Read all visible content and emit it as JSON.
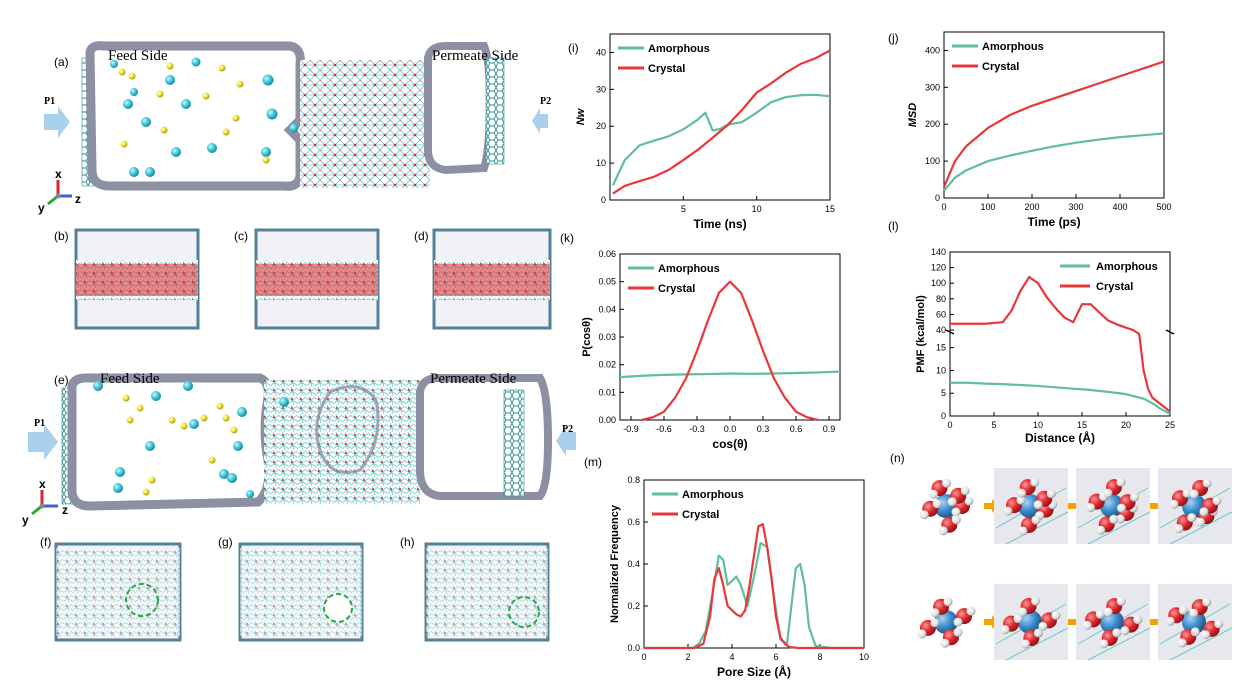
{
  "colors": {
    "amorphous": "#5fbe9c",
    "crystal": "#e8363b",
    "molecule_red": "#d8262c",
    "molecule_cyan": "#3fc9dd",
    "molecule_yellow": "#f2e531",
    "ion_blue": "#3d8fd0",
    "membrane_gray": "#8d8fa2",
    "arrow_blue": "#a9d1ee",
    "arrow_orange": "#f5a300",
    "circle_green": "#2aa640"
  },
  "panels": {
    "a": "(a)",
    "b": "(b)",
    "c": "(c)",
    "d": "(d)",
    "e": "(e)",
    "f": "(f)",
    "g": "(g)",
    "h": "(h)",
    "i": "(i)",
    "j": "(j)",
    "k": "(k)",
    "l": "(l)",
    "m": "(m)",
    "n": "(n)"
  },
  "sim": {
    "feed_side": "Feed Side",
    "permeate_side": "Permeate Side",
    "p1": "P1",
    "p2": "P2",
    "axis_x": "x",
    "axis_y": "y",
    "axis_z": "z"
  },
  "chart_data": [
    {
      "id": "i",
      "type": "line",
      "xlabel": "Time (ns)",
      "ylabel": "Nw",
      "xlim": [
        0,
        15
      ],
      "ylim": [
        0,
        45
      ],
      "xticks": [
        5,
        10,
        15
      ],
      "yticks": [
        0,
        10,
        20,
        30,
        40
      ],
      "legend": "top-left",
      "series": [
        {
          "name": "Amorphous",
          "color": "#5fbe9c",
          "x": [
            0.2,
            1,
            2,
            3,
            4,
            5,
            6,
            6.5,
            7,
            7.5,
            8,
            9,
            10,
            11,
            12,
            13,
            14,
            15
          ],
          "y": [
            4,
            10,
            14,
            16,
            18,
            20,
            22,
            23,
            18,
            19,
            21,
            22,
            24,
            26,
            27,
            28,
            29,
            29
          ]
        },
        {
          "name": "Crystal",
          "color": "#e8363b",
          "x": [
            0.2,
            1,
            2,
            3,
            4,
            5,
            6,
            7,
            8,
            9,
            10,
            11,
            12,
            13,
            14,
            15
          ],
          "y": [
            1,
            3,
            5,
            7,
            9,
            11,
            13,
            16,
            20,
            25,
            30,
            32,
            34,
            36,
            38,
            41
          ]
        }
      ]
    },
    {
      "id": "j",
      "type": "line",
      "xlabel": "Time (ps)",
      "ylabel": "MSD",
      "xlim": [
        0,
        500
      ],
      "ylim": [
        0,
        450
      ],
      "xticks": [
        0,
        100,
        200,
        300,
        400,
        500
      ],
      "yticks": [
        0,
        100,
        200,
        300,
        400
      ],
      "legend": "top-left",
      "series": [
        {
          "name": "Amorphous",
          "color": "#5fbe9c",
          "x": [
            0,
            25,
            50,
            100,
            150,
            200,
            250,
            300,
            350,
            400,
            450,
            500
          ],
          "y": [
            20,
            55,
            75,
            100,
            115,
            128,
            140,
            150,
            158,
            165,
            170,
            175
          ]
        },
        {
          "name": "Crystal",
          "color": "#e8363b",
          "x": [
            0,
            25,
            50,
            100,
            150,
            200,
            250,
            300,
            350,
            400,
            450,
            500
          ],
          "y": [
            30,
            100,
            140,
            190,
            225,
            250,
            270,
            290,
            310,
            330,
            350,
            370
          ]
        }
      ]
    },
    {
      "id": "k",
      "type": "line",
      "xlabel": "cos(θ)",
      "ylabel": "P(cosθ)",
      "xlim": [
        -1,
        1
      ],
      "ylim": [
        0,
        0.06
      ],
      "xticks": [
        -0.9,
        -0.6,
        -0.3,
        0.0,
        0.3,
        0.6,
        0.9
      ],
      "xtick_labels": [
        "-0.9",
        "-0.6",
        "-0.3",
        "0.0",
        "0.3",
        "0.6",
        "0.9"
      ],
      "yticks": [
        0,
        0.01,
        0.02,
        0.03,
        0.04,
        0.05,
        0.06
      ],
      "ytick_labels": [
        "0.00",
        "0.01",
        "0.02",
        "0.03",
        "0.04",
        "0.05",
        "0.06"
      ],
      "legend": "top-left",
      "series": [
        {
          "name": "Amorphous",
          "color": "#5fbe9c",
          "x": [
            -1,
            -0.8,
            -0.6,
            -0.4,
            -0.2,
            0,
            0.2,
            0.4,
            0.6,
            0.8,
            1
          ],
          "y": [
            0.0155,
            0.016,
            0.0163,
            0.0165,
            0.0166,
            0.0168,
            0.0167,
            0.0168,
            0.017,
            0.0172,
            0.0175
          ]
        },
        {
          "name": "Crystal",
          "color": "#e8363b",
          "x": [
            -0.8,
            -0.7,
            -0.6,
            -0.5,
            -0.4,
            -0.3,
            -0.2,
            -0.1,
            0,
            0.1,
            0.2,
            0.3,
            0.4,
            0.5,
            0.6,
            0.7,
            0.8
          ],
          "y": [
            0.0,
            0.001,
            0.003,
            0.008,
            0.015,
            0.025,
            0.036,
            0.046,
            0.05,
            0.046,
            0.036,
            0.025,
            0.015,
            0.008,
            0.003,
            0.001,
            0.0
          ]
        }
      ]
    },
    {
      "id": "l",
      "type": "line",
      "xlabel": "Distance (Å)",
      "ylabel": "PMF (kcal/mol)",
      "xlim": [
        0,
        25
      ],
      "upper_ylim": [
        40,
        140
      ],
      "lower_ylim": [
        0,
        18
      ],
      "xticks": [
        0,
        5,
        10,
        15,
        20,
        25
      ],
      "upper_yticks": [
        40,
        60,
        80,
        100,
        120,
        140
      ],
      "lower_yticks": [
        0,
        5,
        10,
        15
      ],
      "legend": "top-right",
      "series": [
        {
          "name": "Amorphous",
          "color": "#5fbe9c",
          "x": [
            0,
            2,
            4,
            6,
            8,
            10,
            12,
            14,
            16,
            18,
            20,
            22,
            23,
            24,
            25
          ],
          "y": [
            7.3,
            7.3,
            7.1,
            7.0,
            6.8,
            6.6,
            6.3,
            6.0,
            5.7,
            5.3,
            4.8,
            3.8,
            2.8,
            1.5,
            0.5
          ]
        },
        {
          "name": "Crystal",
          "color": "#e8363b",
          "x": [
            0,
            2,
            4,
            6,
            7,
            8,
            9,
            10,
            11,
            12,
            13,
            14,
            15,
            16,
            17,
            18,
            19,
            20,
            20.8,
            21.5,
            22,
            22.5,
            23,
            24,
            25
          ],
          "y": [
            48,
            48,
            48,
            50,
            65,
            90,
            108,
            100,
            82,
            68,
            56,
            50,
            73,
            73,
            62,
            52,
            47,
            43,
            40,
            18,
            10,
            6,
            4,
            2.5,
            1
          ]
        }
      ]
    },
    {
      "id": "m",
      "type": "line",
      "xlabel": "Pore Size (Å)",
      "ylabel": "Normalized Frequency",
      "xlim": [
        0,
        10
      ],
      "ylim": [
        0,
        0.8
      ],
      "xticks": [
        0,
        2,
        4,
        6,
        8,
        10
      ],
      "yticks": [
        0.0,
        0.2,
        0.4,
        0.6,
        0.8
      ],
      "ytick_labels": [
        "0.0",
        "0.2",
        "0.4",
        "0.6",
        "0.8"
      ],
      "legend": "top-left",
      "series": [
        {
          "name": "Amorphous",
          "color": "#5fbe9c",
          "x": [
            0,
            2.2,
            2.5,
            2.8,
            3.1,
            3.4,
            3.6,
            3.8,
            4.0,
            4.2,
            4.4,
            4.7,
            5.0,
            5.3,
            5.6,
            5.9,
            6.2,
            6.5,
            6.7,
            6.9,
            7.1,
            7.3,
            7.5,
            7.8,
            8.5,
            10
          ],
          "y": [
            0,
            0,
            0.02,
            0.08,
            0.25,
            0.44,
            0.42,
            0.3,
            0.32,
            0.34,
            0.3,
            0.2,
            0.34,
            0.5,
            0.48,
            0.25,
            0.04,
            0.02,
            0.2,
            0.38,
            0.4,
            0.3,
            0.1,
            0.01,
            0,
            0
          ]
        },
        {
          "name": "Crystal",
          "color": "#e8363b",
          "x": [
            0,
            2.3,
            2.7,
            3.0,
            3.2,
            3.4,
            3.6,
            3.8,
            4.0,
            4.2,
            4.4,
            4.6,
            4.8,
            5.0,
            5.2,
            5.4,
            5.6,
            5.8,
            6.0,
            6.2,
            6.4,
            6.6,
            7,
            10
          ],
          "y": [
            0,
            0,
            0.02,
            0.15,
            0.33,
            0.38,
            0.3,
            0.2,
            0.18,
            0.16,
            0.15,
            0.18,
            0.3,
            0.44,
            0.58,
            0.59,
            0.48,
            0.33,
            0.15,
            0.05,
            0.02,
            0.005,
            0,
            0
          ]
        }
      ]
    }
  ]
}
